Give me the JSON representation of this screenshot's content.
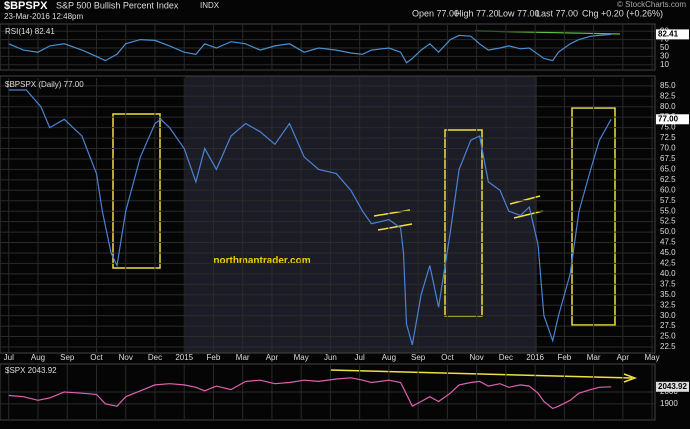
{
  "header": {
    "symbol": "$BPSPX",
    "name": "S&P 500 Bullish Percent Index",
    "exchange": "INDX",
    "timestamp": "23-Mar-2016 12:48pm",
    "quote": [
      "Open 77.00",
      "High 77.20",
      "Low 77.00",
      "Last 77.00",
      "Chg +0.20 (+0.26%)"
    ],
    "credit": "© StockCharts.com",
    "watermark": "northmantrader.com"
  },
  "chart_data": [
    {
      "type": "line",
      "series": [
        {
          "name": "RSI(14) 82.41",
          "color": "#4a90d0",
          "values": [
            60,
            45,
            40,
            55,
            60,
            45,
            30,
            20,
            35,
            60,
            70,
            68,
            55,
            40,
            35,
            60,
            50,
            65,
            60,
            45,
            55,
            60,
            40,
            50,
            45,
            38,
            35,
            45,
            50,
            40,
            15,
            25,
            45,
            60,
            40,
            70,
            80,
            78,
            60,
            45,
            50,
            55,
            48,
            50,
            35,
            25,
            20,
            40,
            60,
            70,
            78,
            80,
            82.41
          ]
        }
      ],
      "x": [
        0,
        0.5,
        1,
        1.4,
        1.9,
        2.5,
        3.0,
        3.3,
        3.7,
        4.0,
        4.5,
        5.0,
        5.5,
        6.0,
        6.4,
        6.7,
        7.1,
        7.6,
        8.1,
        8.6,
        9.1,
        9.6,
        10.1,
        10.6,
        11.2,
        11.7,
        12.1,
        12.4,
        13.0,
        13.4,
        13.6,
        13.8,
        14.1,
        14.4,
        14.7,
        15.1,
        15.4,
        15.8,
        16.1,
        16.4,
        16.8,
        17.1,
        17.5,
        17.8,
        18.1,
        18.3,
        18.6,
        18.8,
        19.2,
        19.5,
        19.9,
        20.2,
        20.6
      ],
      "ylim": [
        0,
        100
      ],
      "yticks": [
        90,
        70,
        50,
        30,
        10
      ],
      "last_label": "82.41"
    },
    {
      "type": "line",
      "series": [
        {
          "name": "$BPSPX (Daily) 77.00",
          "color": "#4a82d4",
          "values": [
            84,
            84,
            80,
            75,
            77,
            73,
            64,
            55,
            45,
            42,
            55,
            68,
            76,
            77,
            75,
            70,
            62,
            70,
            65,
            73,
            76,
            74,
            71,
            76,
            68,
            65,
            64,
            60,
            55,
            52,
            53,
            51,
            45,
            28,
            23,
            35,
            42,
            32,
            50,
            65,
            72,
            73,
            62,
            60,
            55,
            54,
            56,
            47,
            30,
            24,
            30,
            40,
            55,
            65,
            72,
            77
          ]
        }
      ],
      "x": [
        0,
        0.6,
        1.1,
        1.4,
        1.9,
        2.5,
        3.0,
        3.2,
        3.5,
        3.7,
        4.0,
        4.5,
        5.0,
        5.2,
        5.5,
        6.0,
        6.4,
        6.7,
        7.1,
        7.6,
        8.1,
        8.6,
        9.1,
        9.6,
        10.1,
        10.6,
        11.2,
        11.7,
        12.1,
        12.4,
        13.0,
        13.4,
        13.5,
        13.6,
        13.8,
        14.1,
        14.4,
        14.7,
        15.1,
        15.4,
        15.8,
        16.1,
        16.4,
        16.8,
        17.1,
        17.5,
        17.8,
        18.1,
        18.3,
        18.6,
        18.8,
        19.2,
        19.5,
        19.9,
        20.2,
        20.6
      ],
      "xlim": [
        -0.3,
        22.1
      ],
      "xticks": [
        {
          "value": 0,
          "label": "Jul"
        },
        {
          "value": 1,
          "label": "Aug"
        },
        {
          "value": 2,
          "label": "Sep"
        },
        {
          "value": 3,
          "label": "Oct"
        },
        {
          "value": 4,
          "label": "Nov"
        },
        {
          "value": 5,
          "label": "Dec"
        },
        {
          "value": 6,
          "label": "2015"
        },
        {
          "value": 7,
          "label": "Feb"
        },
        {
          "value": 8,
          "label": "Mar"
        },
        {
          "value": 9,
          "label": "Apr"
        },
        {
          "value": 10,
          "label": "May"
        },
        {
          "value": 11,
          "label": "Jun"
        },
        {
          "value": 12,
          "label": "Jul"
        },
        {
          "value": 13,
          "label": "Aug"
        },
        {
          "value": 14,
          "label": "Sep"
        },
        {
          "value": 15,
          "label": "Oct"
        },
        {
          "value": 16,
          "label": "Nov"
        },
        {
          "value": 17,
          "label": "Dec"
        },
        {
          "value": 18,
          "label": "2016"
        },
        {
          "value": 19,
          "label": "Feb"
        },
        {
          "value": 20,
          "label": "Mar"
        },
        {
          "value": 21,
          "label": "Apr"
        },
        {
          "value": 22,
          "label": "May"
        }
      ],
      "ylim": [
        21.3,
        86.4
      ],
      "yticks": [
        22.5,
        {
          "value": 25,
          "label": "25.0"
        },
        27.5,
        {
          "value": 30,
          "label": "30.0"
        },
        32.5,
        {
          "value": 35,
          "label": "35.0"
        },
        37.5,
        {
          "value": 40,
          "label": "40.0"
        },
        42.5,
        {
          "value": 45,
          "label": "45.0"
        },
        47.5,
        {
          "value": 50,
          "label": "50.0"
        },
        52.5,
        {
          "value": 55,
          "label": "55.0"
        },
        57.5,
        {
          "value": 60,
          "label": "60.0"
        },
        62.5,
        {
          "value": 65,
          "label": "65.0"
        },
        67.5,
        {
          "value": 70,
          "label": "70.0"
        },
        72.5,
        {
          "value": 75,
          "label": "75.0"
        },
        77.5,
        {
          "value": 80,
          "label": "80.0"
        },
        82.5,
        {
          "value": 85,
          "label": "85.0"
        }
      ],
      "last_label": "77.00"
    },
    {
      "type": "line",
      "series": [
        {
          "name": "$SPX 2043.92",
          "color": "#e060b0",
          "values": [
            1970,
            1960,
            1930,
            1950,
            2000,
            1990,
            1980,
            1900,
            1880,
            1960,
            2010,
            2060,
            2070,
            2060,
            2040,
            2010,
            2050,
            2020,
            2090,
            2100,
            2070,
            2080,
            2100,
            2090,
            2110,
            2120,
            2100,
            2080,
            2100,
            2080,
            1980,
            1880,
            1920,
            1960,
            1920,
            1990,
            2060,
            2080,
            2090,
            2050,
            2070,
            2040,
            2060,
            2050,
            1990,
            1920,
            1860,
            1880,
            1930,
            1990,
            2020,
            2040,
            2043.92
          ]
        }
      ],
      "x": [
        0,
        0.5,
        1,
        1.4,
        1.9,
        2.5,
        3.0,
        3.3,
        3.7,
        4.0,
        4.5,
        5.0,
        5.5,
        6.0,
        6.4,
        6.7,
        7.1,
        7.6,
        8.1,
        8.6,
        9.1,
        9.6,
        10.1,
        10.6,
        11.2,
        11.7,
        12.1,
        12.4,
        13.0,
        13.4,
        13.6,
        13.8,
        14.1,
        14.4,
        14.7,
        15.1,
        15.4,
        15.8,
        16.1,
        16.4,
        16.8,
        17.1,
        17.5,
        17.8,
        18.1,
        18.3,
        18.6,
        18.8,
        19.2,
        19.5,
        19.9,
        20.2,
        20.6
      ],
      "ylim": [
        1780,
        2220
      ],
      "yticks": [
        2000,
        1900
      ],
      "last_label": "2043.92"
    }
  ]
}
